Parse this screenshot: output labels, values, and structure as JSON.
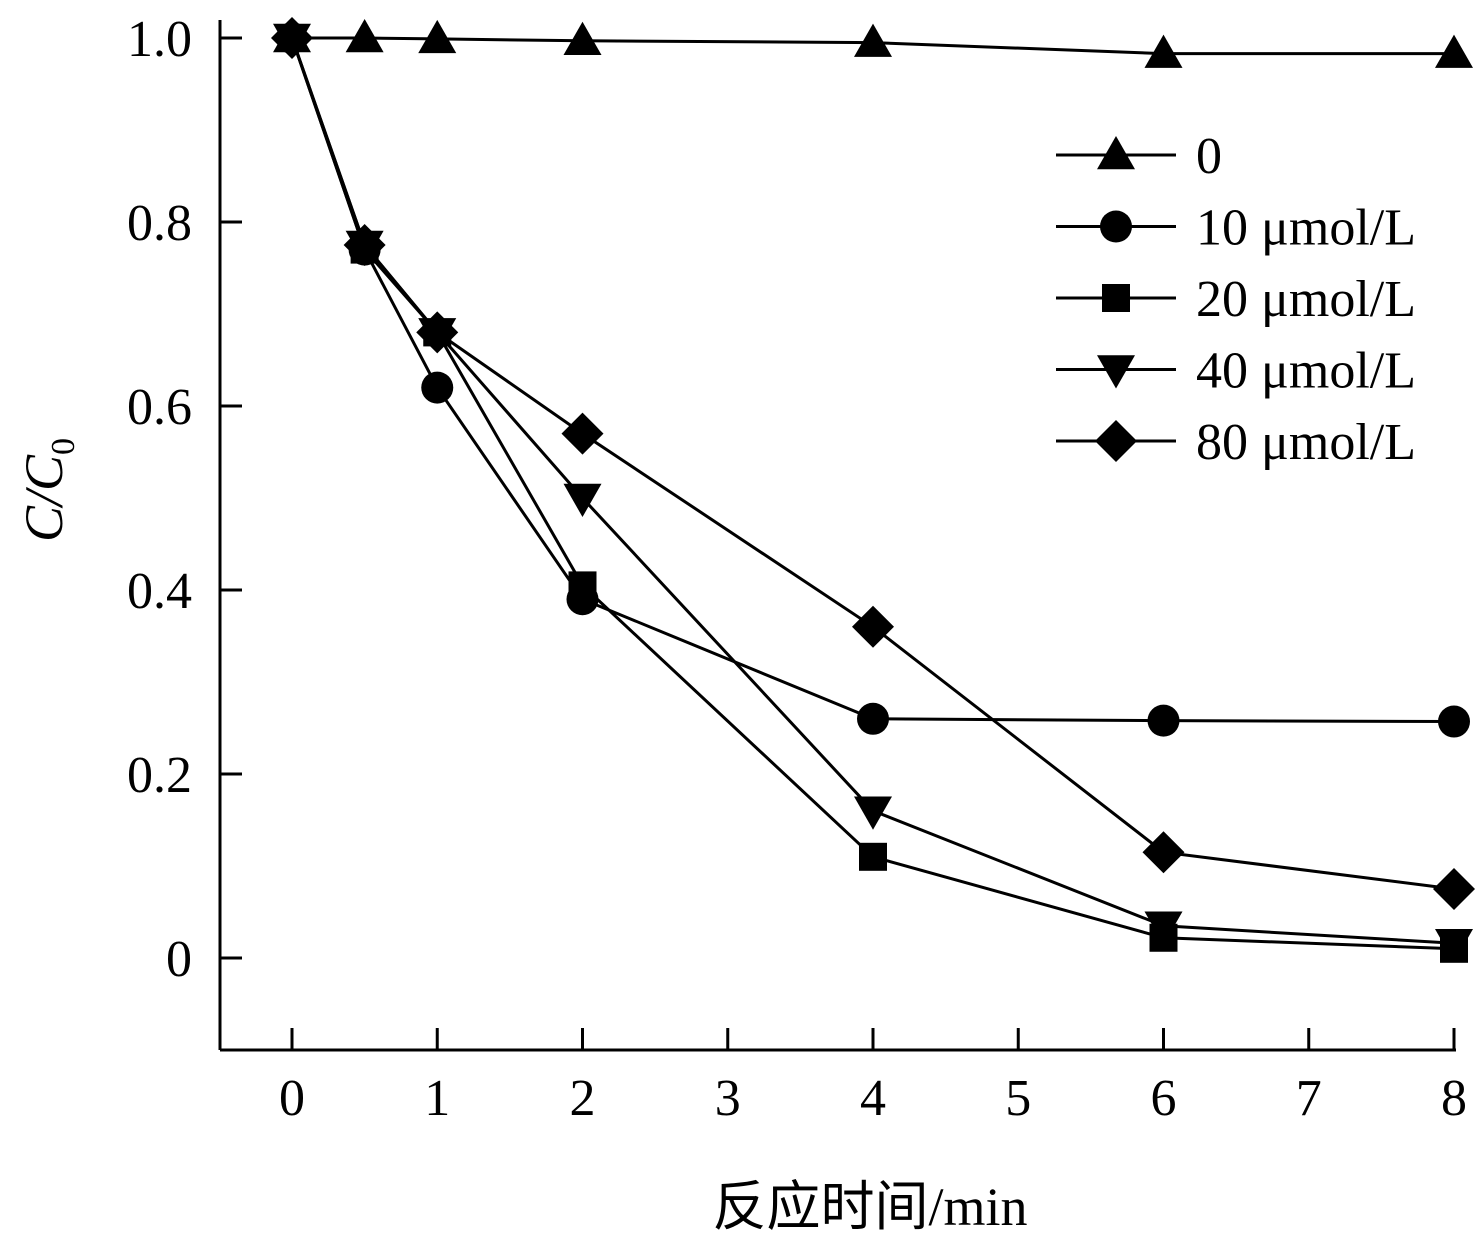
{
  "chart_data": {
    "type": "line",
    "xlabel": "反应时间/min",
    "ylabel": "C/C",
    "ylabel_subscript": "0",
    "xlim": [
      -0.5,
      8
    ],
    "ylim": [
      -0.1,
      1.0
    ],
    "x_ticks": [
      "0",
      "1",
      "2",
      "3",
      "4",
      "5",
      "6",
      "7",
      "8"
    ],
    "y_ticks": [
      "0",
      "0.2",
      "0.4",
      "0.6",
      "0.8",
      "1.0"
    ],
    "legend_position": "top-right",
    "grid": false,
    "series": [
      {
        "name": "0",
        "marker": "triangle-up",
        "x": [
          0,
          0.5,
          1,
          2,
          4,
          6,
          8
        ],
        "y": [
          1.0,
          1.0,
          0.999,
          0.997,
          0.995,
          0.983,
          0.983
        ]
      },
      {
        "name": "10 μmol/L",
        "marker": "circle",
        "x": [
          0,
          0.5,
          1,
          2,
          4,
          6,
          8
        ],
        "y": [
          1.0,
          0.77,
          0.62,
          0.39,
          0.26,
          0.258,
          0.257
        ]
      },
      {
        "name": "20 μmol/L",
        "marker": "square",
        "x": [
          0,
          0.5,
          1,
          2,
          4,
          6,
          8
        ],
        "y": [
          1.0,
          0.77,
          0.68,
          0.405,
          0.11,
          0.022,
          0.01
        ]
      },
      {
        "name": "40 μmol/L",
        "marker": "triangle-down",
        "x": [
          0,
          0.5,
          1,
          2,
          4,
          6,
          8
        ],
        "y": [
          1.0,
          0.775,
          0.68,
          0.5,
          0.16,
          0.035,
          0.016
        ]
      },
      {
        "name": "80 μmol/L",
        "marker": "diamond",
        "x": [
          0,
          0.5,
          1,
          2,
          4,
          6,
          8
        ],
        "y": [
          1.0,
          0.775,
          0.68,
          0.57,
          0.36,
          0.115,
          0.075
        ]
      }
    ]
  }
}
